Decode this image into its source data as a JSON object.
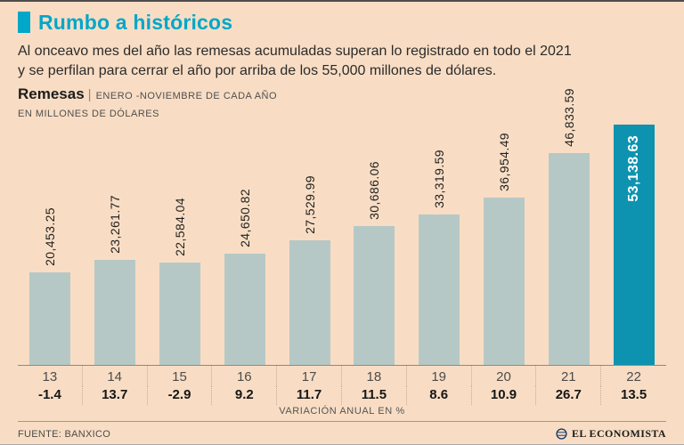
{
  "colors": {
    "background": "#f8ddc4",
    "accent": "#00a7c9",
    "bar": "#b6c8c6",
    "highlight_bar": "#0d93af",
    "text": "#2b2b2b"
  },
  "header": {
    "title": "Rumbo a históricos",
    "description_line1": "Al onceavo mes del año las remesas acumuladas superan lo registrado en todo el 2021",
    "description_line2": "y se perfilan para cerrar el año por arriba de los 55,000 millones de dólares."
  },
  "chart_label": {
    "name": "Remesas",
    "separator": "|",
    "subtitle_line1": "ENERO -NOVIEMBRE DE CADA AÑO",
    "subtitle_line2": "EN MILLONES DE DÓLARES"
  },
  "chart_data": {
    "type": "bar",
    "title": "Remesas, enero-noviembre de cada año",
    "categories": [
      "13",
      "14",
      "15",
      "16",
      "17",
      "18",
      "19",
      "20",
      "21",
      "22"
    ],
    "values": [
      20453.25,
      23261.77,
      22584.04,
      24650.82,
      27529.99,
      30686.06,
      33319.59,
      36954.49,
      46833.59,
      53138.63
    ],
    "value_labels": [
      "20,453.25",
      "23,261.77",
      "22,584.04",
      "24,650.82",
      "27,529.99",
      "30,686.06",
      "33,319.59",
      "36,954.49",
      "46,833.59",
      "53,138.63"
    ],
    "variations": [
      "-1.4",
      "13.7",
      "-2.9",
      "9.2",
      "11.7",
      "11.5",
      "8.6",
      "10.9",
      "26.7",
      "13.5"
    ],
    "highlight_index": 9,
    "xlabel": "VARIACIÓN ANUAL EN %",
    "ylabel": "EN MILLONES DE DÓLARES",
    "ylim": [
      0,
      55000
    ],
    "grid": false,
    "legend": false
  },
  "footer": {
    "source": "FUENTE: BANXICO",
    "brand": "EL ECONOMISTA"
  }
}
